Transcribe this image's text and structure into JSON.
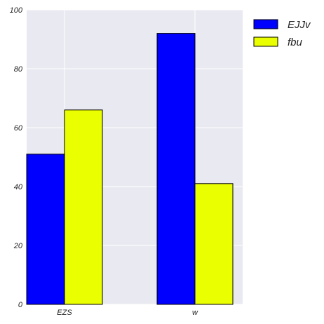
{
  "chart_data": {
    "type": "bar",
    "categories": [
      "EZS",
      "w"
    ],
    "series": [
      {
        "name": "EJJv",
        "values": [
          51,
          92
        ],
        "color": "#0000ff"
      },
      {
        "name": "fbu",
        "values": [
          66,
          41
        ],
        "color": "#eaff00"
      }
    ],
    "title": "",
    "xlabel": "",
    "ylabel": "",
    "ylim": [
      0,
      100
    ],
    "yticks": [
      0,
      20,
      40,
      60,
      80,
      100
    ],
    "grid": true,
    "legend": "outside-top-right",
    "background_color": "#e9e9f1",
    "grid_color": "#ffffff"
  }
}
